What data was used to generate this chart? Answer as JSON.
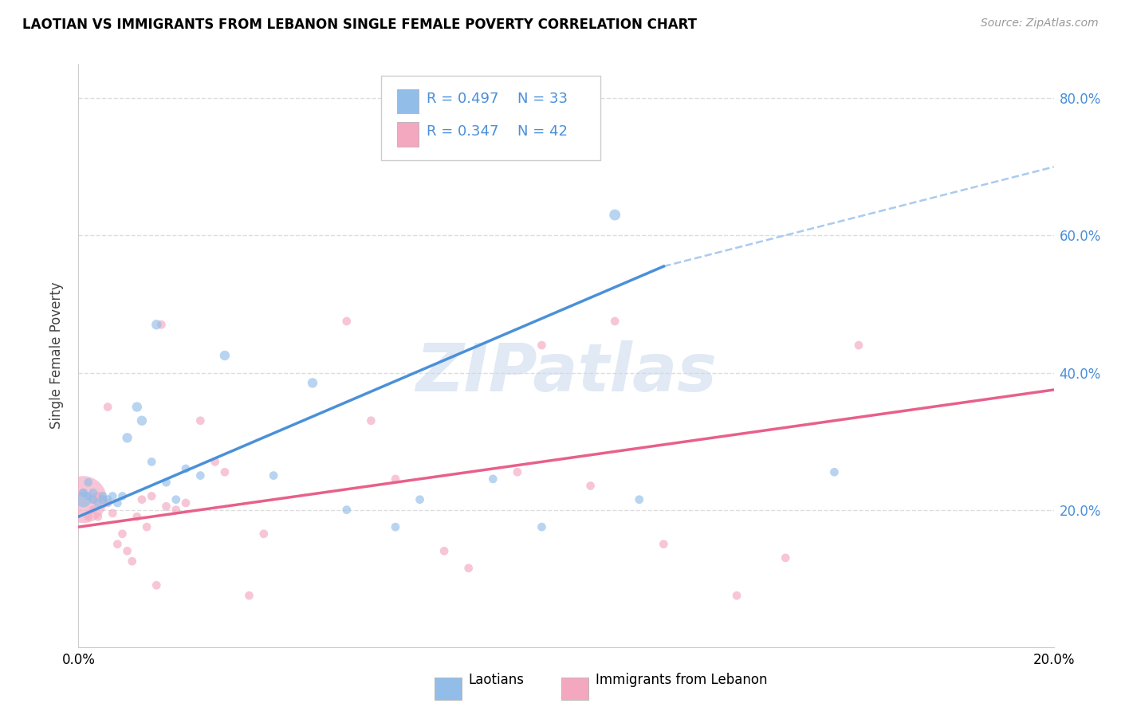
{
  "title": "LAOTIAN VS IMMIGRANTS FROM LEBANON SINGLE FEMALE POVERTY CORRELATION CHART",
  "source": "Source: ZipAtlas.com",
  "ylabel": "Single Female Poverty",
  "legend_bottom": [
    "Laotians",
    "Immigrants from Lebanon"
  ],
  "xlim": [
    0.0,
    0.2
  ],
  "ylim": [
    0.0,
    0.85
  ],
  "blue_color": "#92BDE8",
  "pink_color": "#F4A8C0",
  "blue_line_color": "#4A90D9",
  "pink_line_color": "#E8608A",
  "dashed_line_color": "#AACBEE",
  "grid_color": "#DDDDDD",
  "watermark_color": "#C8D8EC",
  "watermark": "ZIPatlas",
  "blue_R": "0.497",
  "blue_N": "33",
  "pink_R": "0.347",
  "pink_N": "42",
  "blue_line_x0": 0.0,
  "blue_line_y0": 0.19,
  "blue_line_x1": 0.12,
  "blue_line_y1": 0.555,
  "pink_line_x0": 0.0,
  "pink_line_y0": 0.175,
  "pink_line_x1": 0.2,
  "pink_line_y1": 0.375,
  "dashed_line_x0": 0.12,
  "dashed_line_y0": 0.555,
  "dashed_line_x1": 0.2,
  "dashed_line_y1": 0.7,
  "laotian_x": [
    0.001,
    0.001,
    0.002,
    0.002,
    0.003,
    0.003,
    0.004,
    0.005,
    0.005,
    0.006,
    0.007,
    0.008,
    0.009,
    0.01,
    0.012,
    0.013,
    0.015,
    0.016,
    0.018,
    0.02,
    0.022,
    0.025,
    0.03,
    0.04,
    0.048,
    0.055,
    0.065,
    0.07,
    0.085,
    0.095,
    0.11,
    0.115,
    0.155
  ],
  "laotian_y": [
    0.215,
    0.225,
    0.22,
    0.24,
    0.215,
    0.225,
    0.21,
    0.215,
    0.22,
    0.215,
    0.22,
    0.21,
    0.22,
    0.305,
    0.35,
    0.33,
    0.27,
    0.47,
    0.24,
    0.215,
    0.26,
    0.25,
    0.425,
    0.25,
    0.385,
    0.2,
    0.175,
    0.215,
    0.245,
    0.175,
    0.63,
    0.215,
    0.255
  ],
  "laotian_size": [
    200,
    60,
    60,
    60,
    60,
    60,
    60,
    60,
    60,
    60,
    60,
    60,
    60,
    80,
    80,
    80,
    60,
    80,
    60,
    60,
    60,
    60,
    80,
    60,
    80,
    60,
    60,
    60,
    60,
    60,
    100,
    60,
    60
  ],
  "lebanon_x": [
    0.001,
    0.001,
    0.002,
    0.003,
    0.003,
    0.004,
    0.004,
    0.005,
    0.006,
    0.006,
    0.007,
    0.008,
    0.009,
    0.01,
    0.011,
    0.012,
    0.013,
    0.014,
    0.015,
    0.016,
    0.017,
    0.018,
    0.02,
    0.022,
    0.025,
    0.028,
    0.03,
    0.035,
    0.038,
    0.055,
    0.06,
    0.065,
    0.075,
    0.08,
    0.09,
    0.095,
    0.105,
    0.11,
    0.12,
    0.135,
    0.145,
    0.16
  ],
  "lebanon_y": [
    0.215,
    0.225,
    0.19,
    0.2,
    0.215,
    0.19,
    0.22,
    0.215,
    0.21,
    0.35,
    0.195,
    0.15,
    0.165,
    0.14,
    0.125,
    0.19,
    0.215,
    0.175,
    0.22,
    0.09,
    0.47,
    0.205,
    0.2,
    0.21,
    0.33,
    0.27,
    0.255,
    0.075,
    0.165,
    0.475,
    0.33,
    0.245,
    0.14,
    0.115,
    0.255,
    0.44,
    0.235,
    0.475,
    0.15,
    0.075,
    0.13,
    0.44
  ],
  "lebanon_size": [
    1800,
    60,
    60,
    60,
    60,
    60,
    60,
    60,
    60,
    60,
    60,
    60,
    60,
    60,
    60,
    60,
    60,
    60,
    60,
    60,
    60,
    60,
    60,
    60,
    60,
    60,
    60,
    60,
    60,
    60,
    60,
    60,
    60,
    60,
    60,
    60,
    60,
    60,
    60,
    60,
    60,
    60
  ]
}
